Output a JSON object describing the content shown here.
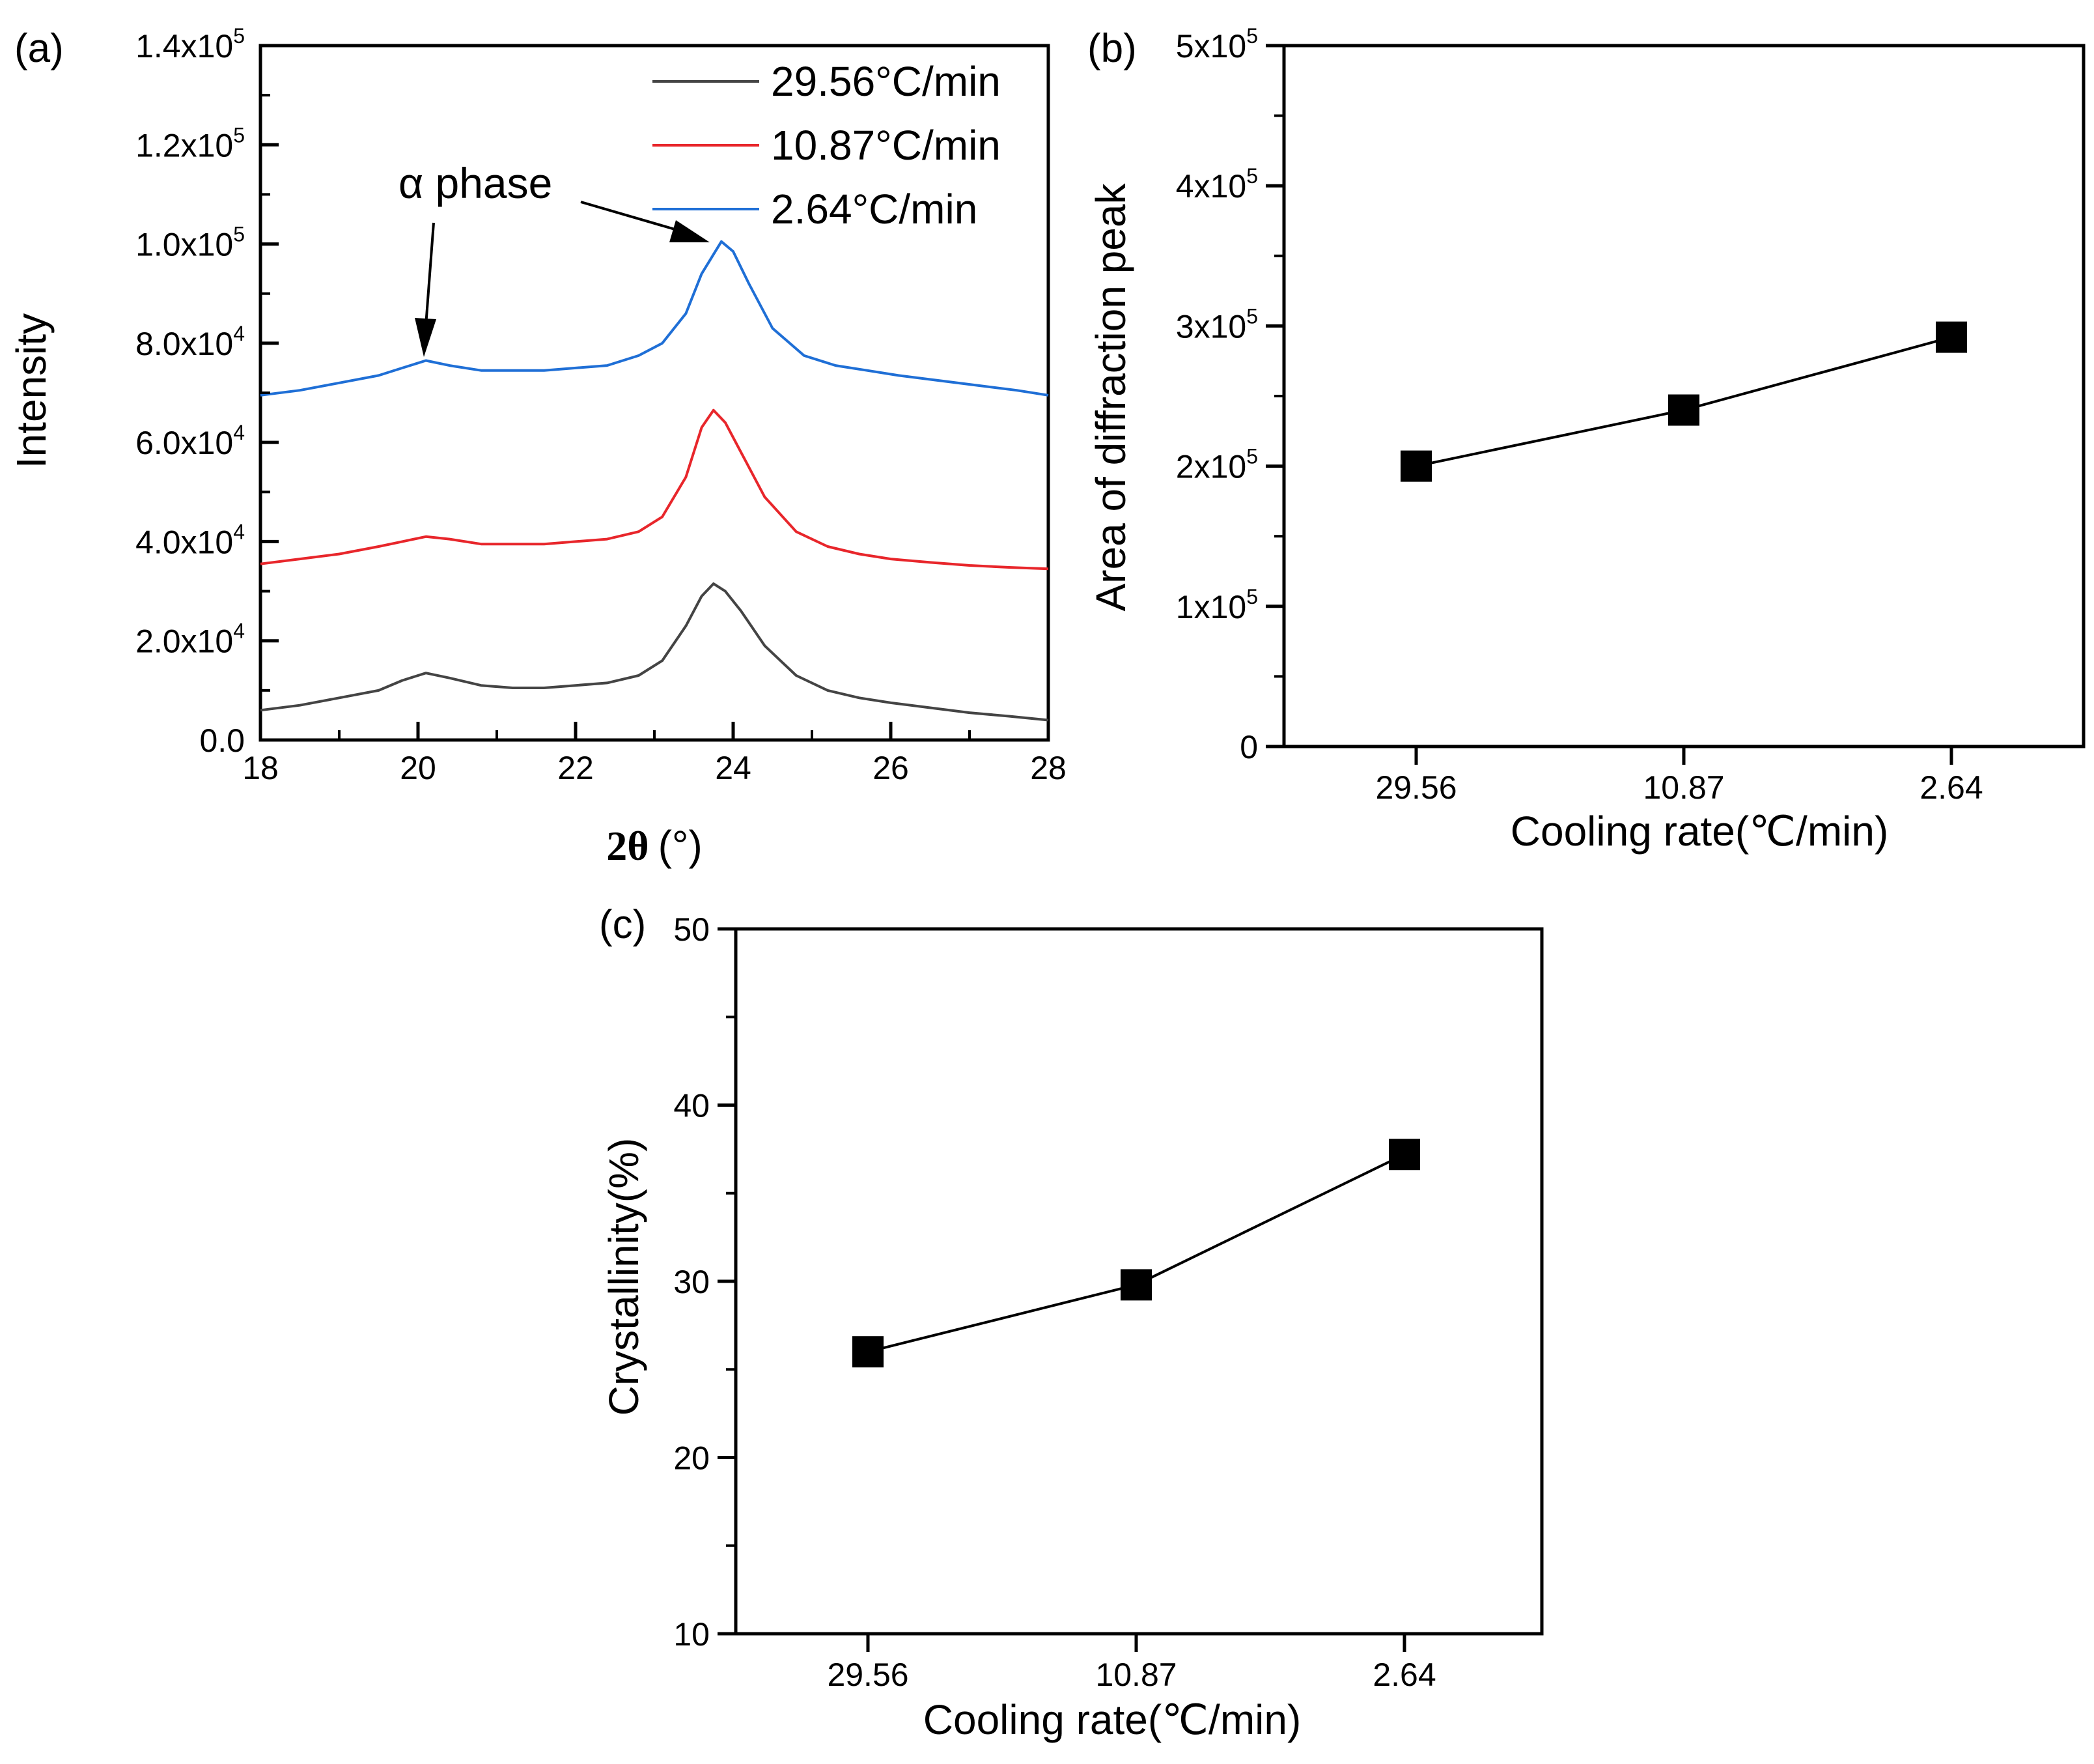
{
  "chart_data": [
    {
      "panel": "(a)",
      "type": "line",
      "xlabel_main": "2θ",
      "xlabel_unit": "(°)",
      "ylabel": "Intensity",
      "xlim": [
        18,
        28
      ],
      "ylim": [
        0,
        140000
      ],
      "x_ticks": [
        "18",
        "20",
        "22",
        "24",
        "26",
        "28"
      ],
      "y_ticks": [
        {
          "mantissa": "0.0",
          "exp": ""
        },
        {
          "mantissa": "2.0x10",
          "exp": "4"
        },
        {
          "mantissa": "4.0x10",
          "exp": "4"
        },
        {
          "mantissa": "6.0x10",
          "exp": "4"
        },
        {
          "mantissa": "8.0x10",
          "exp": "4"
        },
        {
          "mantissa": "1.0x10",
          "exp": "5"
        },
        {
          "mantissa": "1.2x10",
          "exp": "5"
        },
        {
          "mantissa": "1.4x10",
          "exp": "5"
        }
      ],
      "annotation": "α phase",
      "series": [
        {
          "name": "29.56°C/min",
          "color": "#444444",
          "x": [
            18,
            18.5,
            19,
            19.5,
            19.8,
            20.1,
            20.4,
            20.8,
            21.2,
            21.6,
            22,
            22.4,
            22.8,
            23.1,
            23.4,
            23.6,
            23.75,
            23.9,
            24.1,
            24.4,
            24.8,
            25.2,
            25.6,
            26,
            26.5,
            27,
            27.5,
            28
          ],
          "y": [
            6000,
            7000,
            8500,
            10000,
            12000,
            13500,
            12500,
            11000,
            10500,
            10500,
            11000,
            11500,
            13000,
            16000,
            23000,
            29000,
            31500,
            30000,
            26000,
            19000,
            13000,
            10000,
            8500,
            7500,
            6500,
            5500,
            4800,
            4000
          ]
        },
        {
          "name": "10.87°C/min",
          "color": "#e8262b",
          "x": [
            18,
            18.5,
            19,
            19.5,
            19.8,
            20.1,
            20.4,
            20.8,
            21.2,
            21.6,
            22,
            22.4,
            22.8,
            23.1,
            23.4,
            23.6,
            23.75,
            23.9,
            24.1,
            24.4,
            24.8,
            25.2,
            25.6,
            26,
            26.5,
            27,
            27.5,
            28
          ],
          "y": [
            35500,
            36500,
            37500,
            39000,
            40000,
            41000,
            40500,
            39500,
            39500,
            39500,
            40000,
            40500,
            42000,
            45000,
            53000,
            63000,
            66500,
            64000,
            58000,
            49000,
            42000,
            39000,
            37500,
            36500,
            35800,
            35200,
            34800,
            34500
          ]
        },
        {
          "name": "2.64°C/min",
          "color": "#1f6fd6",
          "x": [
            18,
            18.5,
            19,
            19.5,
            19.8,
            20.1,
            20.4,
            20.8,
            21.2,
            21.6,
            22,
            22.4,
            22.8,
            23.1,
            23.4,
            23.6,
            23.85,
            24.0,
            24.2,
            24.5,
            24.9,
            25.3,
            25.7,
            26.1,
            26.6,
            27.1,
            27.6,
            28
          ],
          "y": [
            69500,
            70500,
            72000,
            73500,
            75000,
            76500,
            75500,
            74500,
            74500,
            74500,
            75000,
            75500,
            77500,
            80000,
            86000,
            94000,
            100500,
            98500,
            92000,
            83000,
            77500,
            75500,
            74500,
            73500,
            72500,
            71500,
            70500,
            69500
          ]
        }
      ]
    },
    {
      "panel": "(b)",
      "type": "line",
      "xlabel": "Cooling rate(℃/min)",
      "ylabel": "Area of diffraction peak",
      "categories": [
        "29.56",
        "10.87",
        "2.64"
      ],
      "values": [
        200000,
        240000,
        292000
      ],
      "ylim": [
        0,
        500000
      ],
      "y_ticks": [
        {
          "mantissa": "0",
          "exp": ""
        },
        {
          "mantissa": "1x10",
          "exp": "5"
        },
        {
          "mantissa": "2x10",
          "exp": "5"
        },
        {
          "mantissa": "3x10",
          "exp": "5"
        },
        {
          "mantissa": "4x10",
          "exp": "5"
        },
        {
          "mantissa": "5x10",
          "exp": "5"
        }
      ]
    },
    {
      "panel": "(c)",
      "type": "line",
      "xlabel": "Cooling rate(℃/min)",
      "ylabel": "Crystallinity(%)",
      "categories": [
        "29.56",
        "10.87",
        "2.64"
      ],
      "values": [
        26,
        29.8,
        37.2
      ],
      "ylim": [
        10,
        50
      ],
      "y_ticks": [
        {
          "mantissa": "10",
          "exp": ""
        },
        {
          "mantissa": "20",
          "exp": ""
        },
        {
          "mantissa": "30",
          "exp": ""
        },
        {
          "mantissa": "40",
          "exp": ""
        },
        {
          "mantissa": "50",
          "exp": ""
        }
      ]
    }
  ]
}
